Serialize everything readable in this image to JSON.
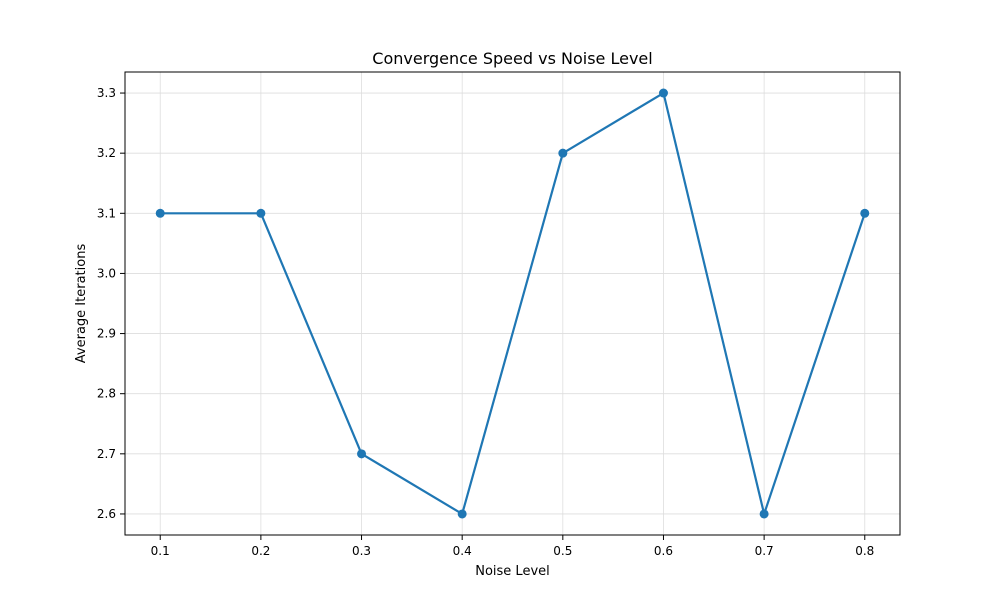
{
  "chart_data": {
    "type": "line",
    "title": "Convergence Speed vs Noise Level",
    "xlabel": "Noise Level",
    "ylabel": "Average Iterations",
    "x": [
      0.1,
      0.2,
      0.3,
      0.4,
      0.5,
      0.6,
      0.7,
      0.8
    ],
    "series": [
      {
        "values": [
          3.1,
          3.1,
          2.7,
          2.6,
          3.2,
          3.3,
          2.6,
          3.1
        ],
        "color": "#1f77b4"
      }
    ],
    "xticks": [
      "0.1",
      "0.2",
      "0.3",
      "0.4",
      "0.5",
      "0.6",
      "0.7",
      "0.8"
    ],
    "yticks": [
      "2.6",
      "2.7",
      "2.8",
      "2.9",
      "3.0",
      "3.1",
      "3.2",
      "3.3"
    ],
    "xlim": [
      0.065,
      0.835
    ],
    "ylim": [
      2.565,
      3.335
    ],
    "grid": true,
    "marker": "circle"
  }
}
